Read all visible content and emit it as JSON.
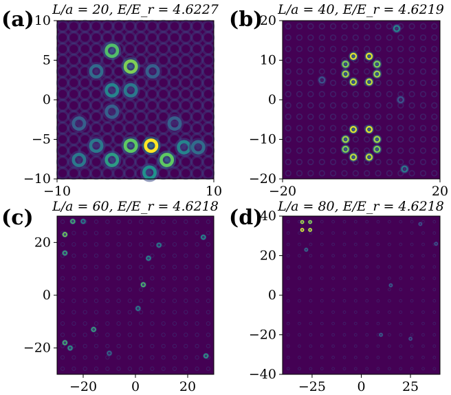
{
  "chart_data": [
    {
      "type": "heatmap",
      "panel_label": "(a)",
      "title": "L/a = 20, E/E_r = 4.6227",
      "xlim": [
        -10,
        10
      ],
      "ylim": [
        -10,
        10
      ],
      "xticks": [
        "−10",
        "10"
      ],
      "yticks": [
        "10",
        "5",
        "0",
        "−5",
        "−10"
      ],
      "peaks": [
        {
          "x": -3.0,
          "y": 6.2,
          "v": 0.7
        },
        {
          "x": -0.6,
          "y": 4.2,
          "v": 0.8
        },
        {
          "x": -3.0,
          "y": 1.2,
          "v": 0.45
        },
        {
          "x": -0.6,
          "y": 1.2,
          "v": 0.4
        },
        {
          "x": -5.0,
          "y": 3.6,
          "v": 0.35
        },
        {
          "x": 2.2,
          "y": 3.6,
          "v": 0.3
        },
        {
          "x": -7.2,
          "y": -3.0,
          "v": 0.3
        },
        {
          "x": -3.0,
          "y": -1.5,
          "v": 0.3
        },
        {
          "x": -0.6,
          "y": -5.8,
          "v": 0.75
        },
        {
          "x": 2.0,
          "y": -5.8,
          "v": 1.0
        },
        {
          "x": 4.0,
          "y": -7.6,
          "v": 0.75
        },
        {
          "x": -3.0,
          "y": -7.6,
          "v": 0.55
        },
        {
          "x": -7.2,
          "y": -7.6,
          "v": 0.4
        },
        {
          "x": 6.2,
          "y": -6.0,
          "v": 0.45
        },
        {
          "x": 8.0,
          "y": -6.0,
          "v": 0.35
        },
        {
          "x": 1.8,
          "y": -9.2,
          "v": 0.5
        },
        {
          "x": 5.0,
          "y": -3.0,
          "v": 0.3
        },
        {
          "x": -5.0,
          "y": -5.8,
          "v": 0.4
        }
      ]
    },
    {
      "type": "heatmap",
      "panel_label": "(b)",
      "title": "L/a = 40, E/E_r = 4.6219",
      "xlim": [
        -20,
        20
      ],
      "ylim": [
        -20,
        20
      ],
      "xticks": [
        "−20",
        "20"
      ],
      "yticks": [
        "20",
        "10",
        "0",
        "−10",
        "−20"
      ],
      "peaks": [
        {
          "x": -2.0,
          "y": 11.0,
          "v": 0.95
        },
        {
          "x": 2.0,
          "y": 11.0,
          "v": 0.95
        },
        {
          "x": -4.0,
          "y": 9.0,
          "v": 0.8
        },
        {
          "x": 4.0,
          "y": 9.0,
          "v": 0.8
        },
        {
          "x": -4.0,
          "y": 6.5,
          "v": 0.85
        },
        {
          "x": 4.0,
          "y": 6.5,
          "v": 0.85
        },
        {
          "x": -2.0,
          "y": 4.5,
          "v": 0.9
        },
        {
          "x": 2.0,
          "y": 4.5,
          "v": 0.9
        },
        {
          "x": -2.0,
          "y": -7.5,
          "v": 0.95
        },
        {
          "x": 2.0,
          "y": -7.5,
          "v": 0.95
        },
        {
          "x": -4.0,
          "y": -10.0,
          "v": 0.85
        },
        {
          "x": 4.0,
          "y": -10.0,
          "v": 0.85
        },
        {
          "x": -4.0,
          "y": -12.5,
          "v": 0.8
        },
        {
          "x": 4.0,
          "y": -12.5,
          "v": 0.8
        },
        {
          "x": -2.0,
          "y": -14.5,
          "v": 0.9
        },
        {
          "x": 2.0,
          "y": -14.5,
          "v": 0.9
        },
        {
          "x": 9.0,
          "y": 18.0,
          "v": 0.45
        },
        {
          "x": 11.0,
          "y": -17.5,
          "v": 0.4
        },
        {
          "x": -10.0,
          "y": 5.0,
          "v": 0.25
        },
        {
          "x": 10.0,
          "y": 0.0,
          "v": 0.25
        }
      ]
    },
    {
      "type": "heatmap",
      "panel_label": "(c)",
      "title": "L/a = 60, E/E_r = 4.6218",
      "xlim": [
        -30,
        30
      ],
      "ylim": [
        -30,
        30
      ],
      "xticks": [
        "−20",
        "0",
        "20"
      ],
      "yticks": [
        "20",
        "0",
        "−20"
      ],
      "peaks": [
        {
          "x": -27.0,
          "y": 23.0,
          "v": 0.8
        },
        {
          "x": -24.0,
          "y": 28.0,
          "v": 0.65
        },
        {
          "x": -27.0,
          "y": 16.0,
          "v": 0.6
        },
        {
          "x": -20.0,
          "y": 28.0,
          "v": 0.45
        },
        {
          "x": 3.0,
          "y": 4.0,
          "v": 0.7
        },
        {
          "x": 5.0,
          "y": 14.0,
          "v": 0.5
        },
        {
          "x": 9.0,
          "y": 19.0,
          "v": 0.45
        },
        {
          "x": 26.0,
          "y": 22.0,
          "v": 0.5
        },
        {
          "x": -16.0,
          "y": -13.0,
          "v": 0.6
        },
        {
          "x": -27.0,
          "y": -18.0,
          "v": 0.65
        },
        {
          "x": -25.0,
          "y": -20.0,
          "v": 0.55
        },
        {
          "x": 27.0,
          "y": -23.0,
          "v": 0.55
        },
        {
          "x": 1.0,
          "y": -5.0,
          "v": 0.45
        },
        {
          "x": -10.0,
          "y": -22.0,
          "v": 0.35
        }
      ]
    },
    {
      "type": "heatmap",
      "panel_label": "(d)",
      "title": "L/a = 80, E/E_r = 4.6218",
      "xlim": [
        -40,
        40
      ],
      "ylim": [
        -40,
        40
      ],
      "xticks": [
        "−25",
        "0",
        "25"
      ],
      "yticks": [
        "40",
        "20",
        "0",
        "−20",
        "−40"
      ],
      "peaks": [
        {
          "x": -30.0,
          "y": 37.0,
          "v": 0.9
        },
        {
          "x": -26.0,
          "y": 37.0,
          "v": 0.85
        },
        {
          "x": -30.0,
          "y": 33.0,
          "v": 1.0
        },
        {
          "x": -26.0,
          "y": 33.0,
          "v": 0.95
        },
        {
          "x": -28.0,
          "y": 23.0,
          "v": 0.35
        },
        {
          "x": 15.0,
          "y": 5.0,
          "v": 0.3
        },
        {
          "x": 10.0,
          "y": -20.0,
          "v": 0.3
        },
        {
          "x": 30.0,
          "y": 36.0,
          "v": 0.25
        },
        {
          "x": 38.0,
          "y": 26.0,
          "v": 0.25
        },
        {
          "x": 25.0,
          "y": -22.0,
          "v": 0.25
        }
      ]
    }
  ]
}
